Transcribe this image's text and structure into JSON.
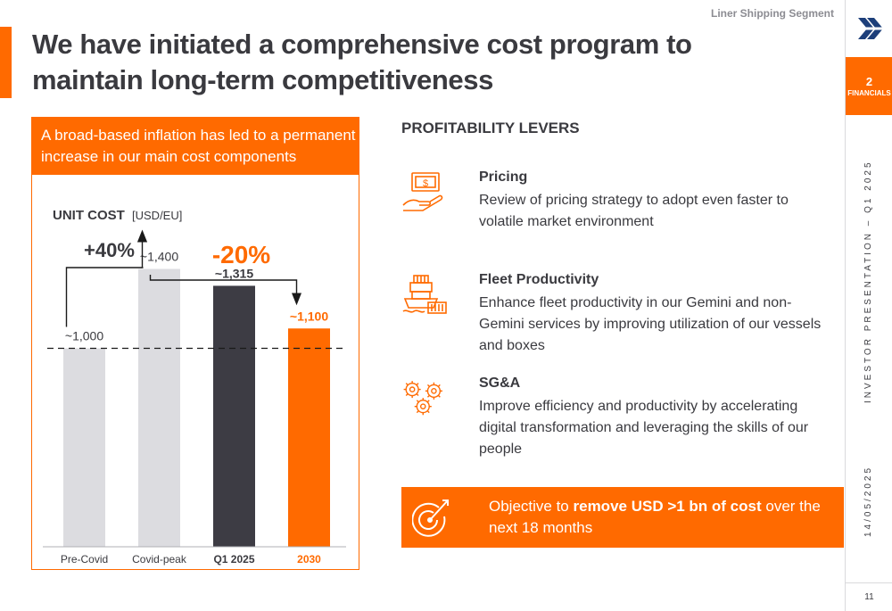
{
  "header": {
    "segment": "Liner Shipping Segment",
    "title": "We have initiated a comprehensive cost program to maintain long-term competitiveness"
  },
  "rail": {
    "section_number": "2",
    "section_label": "FINANCIALS",
    "presentation": "INVESTOR PRESENTATION – Q1 2025",
    "date": "14/05/2025",
    "page": "11"
  },
  "panel": {
    "header": "A broad-based inflation has led to a permanent increase in our main cost components"
  },
  "chart_data": {
    "type": "bar",
    "title": "UNIT COST",
    "unit": "[USD/EU]",
    "categories": [
      "Pre-Covid",
      "Covid-peak",
      "Q1 2025",
      "2030"
    ],
    "values": [
      1000,
      1400,
      1315,
      1100
    ],
    "value_labels": [
      "~1,000",
      "~1,400",
      "~1,315",
      "~1,100"
    ],
    "bar_colors": [
      "#dcdce0",
      "#dcdce0",
      "#3d3c44",
      "#ff6a00"
    ],
    "label_colors": [
      "#3a3a3f",
      "#3a3a3f",
      "#3a3a3f",
      "#ff6a00"
    ],
    "bold_labels": [
      false,
      false,
      true,
      true
    ],
    "reference_line": 1000,
    "ylim": [
      0,
      1600
    ],
    "annotations": [
      {
        "text": "+40%",
        "from": "Pre-Covid",
        "to": "Covid-peak",
        "color": "#3a3a3f"
      },
      {
        "text": "-20%",
        "from": "Covid-peak",
        "to": "2030",
        "color": "#ff6a00"
      }
    ]
  },
  "levers": {
    "title": "PROFITABILITY LEVERS",
    "items": [
      {
        "icon": "pricing-icon",
        "title": "Pricing",
        "text": "Review of pricing strategy to adopt even faster to volatile market environment"
      },
      {
        "icon": "fleet-icon",
        "title": "Fleet Productivity",
        "text": "Enhance fleet productivity in our Gemini and non-Gemini services by improving utilization of our vessels and boxes"
      },
      {
        "icon": "gears-icon",
        "title": "SG&A",
        "text": "Improve efficiency and productivity by accelerating digital transformation and leveraging the skills of our people"
      }
    ]
  },
  "objective": {
    "prefix": "Objective to ",
    "bold": "remove USD >1 bn of cost",
    "suffix": " over the next 18 months"
  },
  "colors": {
    "accent": "#ff6a00",
    "dark": "#3a3a3f",
    "grey_bar": "#dcdce0",
    "dark_bar": "#3d3c44"
  }
}
